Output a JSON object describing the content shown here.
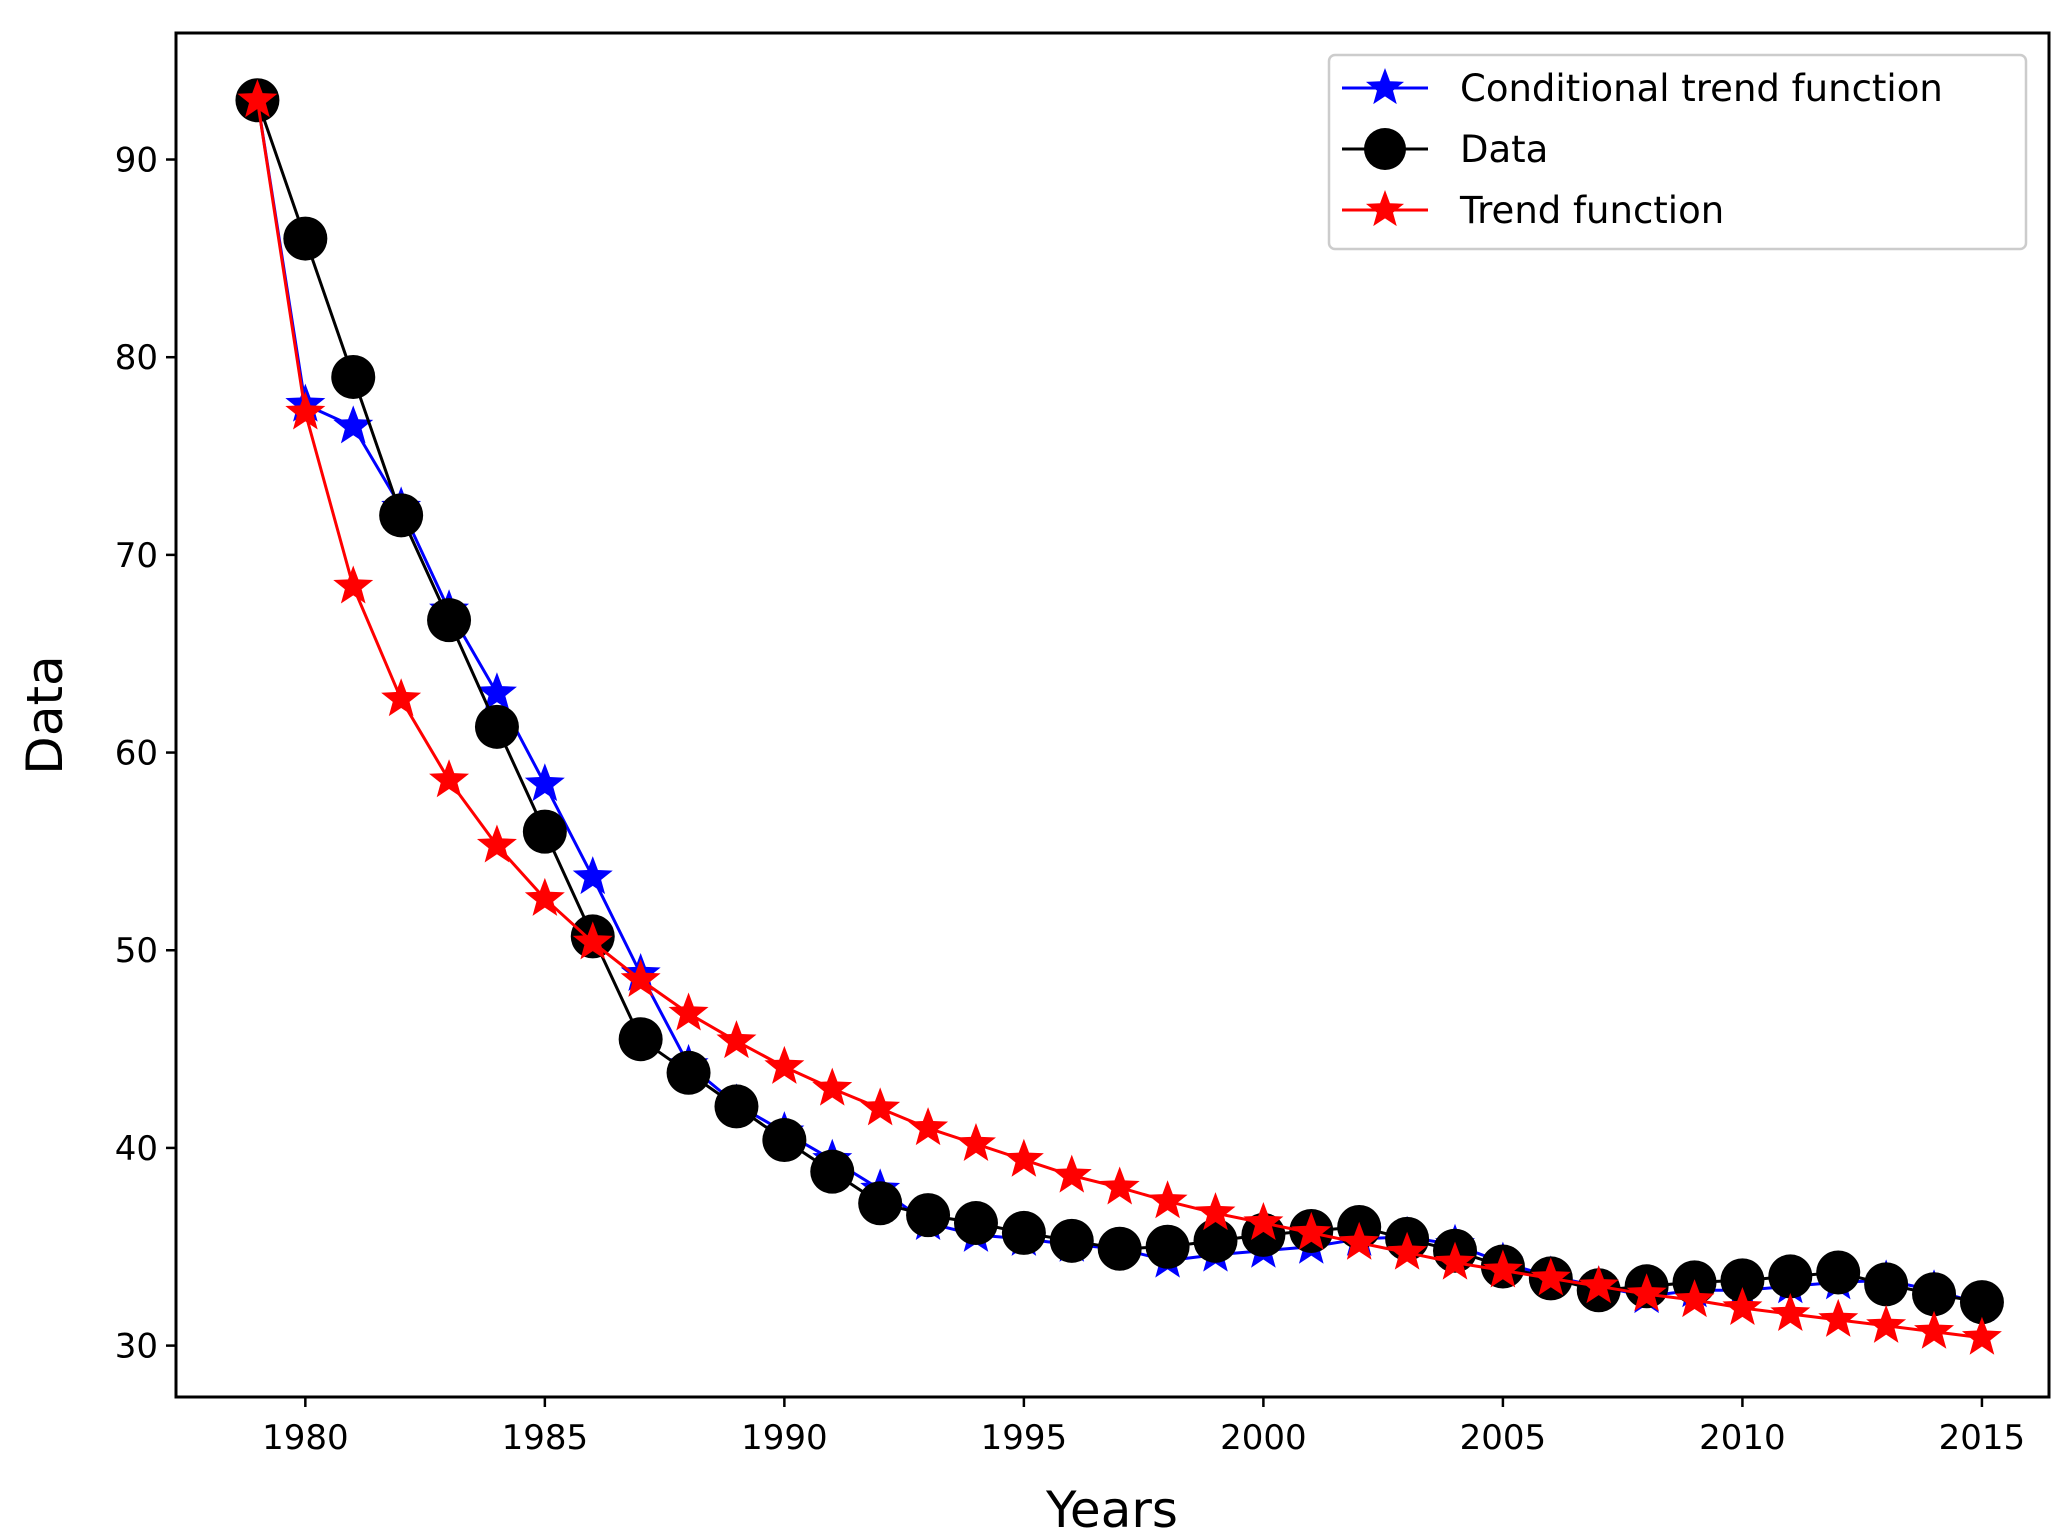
{
  "chart_data": {
    "type": "line",
    "title": "",
    "xlabel": "Years",
    "ylabel": "Data",
    "xlim": [
      1977.3,
      2016.4
    ],
    "ylim": [
      27.4,
      96.4
    ],
    "xticks": [
      1980,
      1985,
      1990,
      1995,
      2000,
      2005,
      2010,
      2015
    ],
    "yticks": [
      30,
      40,
      50,
      60,
      70,
      80,
      90
    ],
    "grid": false,
    "legend_position": "top-right",
    "x": [
      1979,
      1980,
      1981,
      1982,
      1983,
      1984,
      1985,
      1986,
      1987,
      1988,
      1989,
      1990,
      1991,
      1992,
      1993,
      1994,
      1995,
      1996,
      1997,
      1998,
      1999,
      2000,
      2001,
      2002,
      2003,
      2004,
      2005,
      2006,
      2007,
      2008,
      2009,
      2010,
      2011,
      2012,
      2013,
      2014,
      2015
    ],
    "series": [
      {
        "name": "Conditional trend function",
        "color": "#0000ff",
        "marker": "star",
        "values": [
          93.0,
          77.6,
          76.5,
          72.4,
          67.2,
          63.0,
          58.4,
          53.7,
          48.8,
          44.2,
          42.2,
          40.8,
          39.4,
          37.9,
          36.2,
          35.6,
          35.4,
          35.1,
          34.9,
          34.3,
          34.6,
          34.8,
          35.0,
          35.4,
          35.5,
          35.1,
          34.2,
          33.5,
          33.0,
          32.5,
          32.8,
          32.8,
          33.0,
          33.2,
          33.3,
          32.8,
          32.1
        ]
      },
      {
        "name": "Data",
        "color": "#000000",
        "marker": "circle",
        "values": [
          93.0,
          86.0,
          79.0,
          72.0,
          66.7,
          61.3,
          56.0,
          50.7,
          45.5,
          43.8,
          42.1,
          40.4,
          38.8,
          37.2,
          36.6,
          36.2,
          35.7,
          35.3,
          34.9,
          35.0,
          35.3,
          35.6,
          35.8,
          36.0,
          35.4,
          34.8,
          34.0,
          33.4,
          32.8,
          33.0,
          33.2,
          33.3,
          33.5,
          33.7,
          33.1,
          32.6,
          32.2
        ]
      },
      {
        "name": "Trend function",
        "color": "#ff0000",
        "marker": "star",
        "values": [
          93.0,
          77.2,
          68.4,
          62.7,
          58.6,
          55.3,
          52.6,
          50.4,
          48.5,
          46.8,
          45.4,
          44.1,
          43.0,
          42.0,
          41.0,
          40.2,
          39.4,
          38.6,
          38.0,
          37.3,
          36.7,
          36.2,
          35.7,
          35.2,
          34.7,
          34.2,
          33.8,
          33.4,
          33.0,
          32.6,
          32.3,
          31.9,
          31.6,
          31.3,
          31.0,
          30.7,
          30.4
        ]
      }
    ]
  }
}
